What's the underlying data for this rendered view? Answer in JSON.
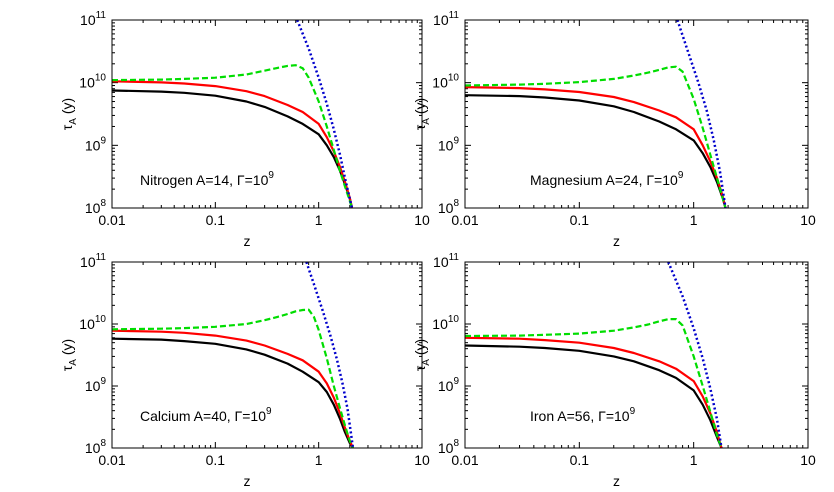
{
  "chart_data": [
    {
      "type": "line",
      "annotation": "Nitrogen A=14, Γ=10",
      "annotation_sup": "9",
      "xlabel": "z",
      "ylabel": "τ",
      "ylabel_sub": "A",
      "ylabel_unit": " (y)",
      "xscale": "log",
      "yscale": "log",
      "xlim": [
        0.01,
        10
      ],
      "ylim": [
        100000000.0,
        100000000000.0
      ],
      "xticks": [
        "0.01",
        "0.1",
        "1",
        "10"
      ],
      "yticks": [
        {
          "base": "10",
          "exp": "8"
        },
        {
          "base": "10",
          "exp": "9"
        },
        {
          "base": "10",
          "exp": "10"
        },
        {
          "base": "10",
          "exp": "11"
        }
      ],
      "series": [
        {
          "color": "#000000",
          "style": "solid",
          "x": [
            0.01,
            0.03,
            0.05,
            0.1,
            0.2,
            0.3,
            0.5,
            0.7,
            1.0,
            1.2,
            1.4,
            1.6,
            1.8,
            2.0,
            2.1
          ],
          "y": [
            7500000000.0,
            7200000000.0,
            6900000000.0,
            6200000000.0,
            5000000000.0,
            4100000000.0,
            2900000000.0,
            2200000000.0,
            1500000000.0,
            1000000000.0,
            650000000.0,
            400000000.0,
            240000000.0,
            140000000.0,
            100000000.0
          ]
        },
        {
          "color": "#ff0000",
          "style": "solid",
          "x": [
            0.01,
            0.03,
            0.05,
            0.1,
            0.2,
            0.3,
            0.5,
            0.7,
            1.0,
            1.2,
            1.4,
            1.6,
            1.8,
            2.0,
            2.1
          ],
          "y": [
            10500000000.0,
            10100000000.0,
            9700000000.0,
            8800000000.0,
            7300000000.0,
            6100000000.0,
            4400000000.0,
            3400000000.0,
            2200000000.0,
            1350000000.0,
            800000000.0,
            460000000.0,
            260000000.0,
            145000000.0,
            100000000.0
          ]
        },
        {
          "color": "#00dd00",
          "style": "dashed",
          "x": [
            0.01,
            0.03,
            0.05,
            0.1,
            0.2,
            0.3,
            0.4,
            0.5,
            0.6,
            0.7,
            0.8,
            1.0,
            1.2,
            1.4,
            1.6,
            1.8,
            2.0,
            2.1
          ],
          "y": [
            11000000000.0,
            11200000000.0,
            11500000000.0,
            12000000000.0,
            13500000000.0,
            15500000000.0,
            17200000000.0,
            18500000000.0,
            19000000000.0,
            17000000000.0,
            12000000000.0,
            5000000000.0,
            2000000000.0,
            850000000.0,
            400000000.0,
            220000000.0,
            130000000.0,
            100000000.0
          ]
        },
        {
          "color": "#0000cc",
          "style": "dotted",
          "x": [
            0.62,
            0.8,
            1.0,
            1.2,
            1.4,
            1.6,
            1.8,
            2.0,
            2.1
          ],
          "y": [
            100000000000.0,
            35000000000.0,
            12000000000.0,
            4600000000.0,
            1800000000.0,
            730000000.0,
            300000000.0,
            140000000.0,
            100000000.0
          ]
        }
      ]
    },
    {
      "type": "line",
      "annotation": "Magnesium A=24, Γ=10",
      "annotation_sup": "9",
      "xlabel": "z",
      "ylabel": "τ",
      "ylabel_sub": "A",
      "ylabel_unit": " (y)",
      "xscale": "log",
      "yscale": "log",
      "xlim": [
        0.01,
        10
      ],
      "ylim": [
        100000000.0,
        100000000000.0
      ],
      "xticks": [
        "0.01",
        "0.1",
        "1",
        "10"
      ],
      "yticks": [
        {
          "base": "10",
          "exp": "8"
        },
        {
          "base": "10",
          "exp": "9"
        },
        {
          "base": "10",
          "exp": "10"
        },
        {
          "base": "10",
          "exp": "11"
        }
      ],
      "series": [
        {
          "color": "#000000",
          "style": "solid",
          "x": [
            0.01,
            0.03,
            0.05,
            0.1,
            0.2,
            0.3,
            0.5,
            0.7,
            1.0,
            1.2,
            1.4,
            1.6,
            1.8,
            1.9
          ],
          "y": [
            6300000000.0,
            6100000000.0,
            5800000000.0,
            5200000000.0,
            4200000000.0,
            3400000000.0,
            2400000000.0,
            1800000000.0,
            1200000000.0,
            750000000.0,
            450000000.0,
            260000000.0,
            140000000.0,
            100000000.0
          ]
        },
        {
          "color": "#ff0000",
          "style": "solid",
          "x": [
            0.01,
            0.03,
            0.05,
            0.1,
            0.2,
            0.3,
            0.5,
            0.7,
            1.0,
            1.2,
            1.4,
            1.6,
            1.8,
            1.9
          ],
          "y": [
            8500000000.0,
            8200000000.0,
            7800000000.0,
            7100000000.0,
            5900000000.0,
            4900000000.0,
            3600000000.0,
            2800000000.0,
            1800000000.0,
            1000000000.0,
            550000000.0,
            300000000.0,
            150000000.0,
            100000000.0
          ]
        },
        {
          "color": "#00dd00",
          "style": "dashed",
          "x": [
            0.01,
            0.03,
            0.05,
            0.1,
            0.2,
            0.3,
            0.4,
            0.5,
            0.6,
            0.7,
            0.8,
            1.0,
            1.2,
            1.4,
            1.6,
            1.8,
            1.9
          ],
          "y": [
            9000000000.0,
            9300000000.0,
            9600000000.0,
            10200000000.0,
            11500000000.0,
            13000000000.0,
            14500000000.0,
            16000000000.0,
            17500000000.0,
            18000000000.0,
            15000000000.0,
            5500000000.0,
            1900000000.0,
            700000000.0,
            300000000.0,
            140000000.0,
            100000000.0
          ]
        },
        {
          "color": "#0000cc",
          "style": "dotted",
          "x": [
            0.72,
            0.9,
            1.1,
            1.3,
            1.5,
            1.7,
            1.9
          ],
          "y": [
            100000000000.0,
            30000000000.0,
            10000000000.0,
            3600000000.0,
            1200000000.0,
            380000000.0,
            100000000.0
          ]
        }
      ]
    },
    {
      "type": "line",
      "annotation": "Calcium A=40, Γ=10",
      "annotation_sup": "9",
      "xlabel": "z",
      "ylabel": "τ",
      "ylabel_sub": "A",
      "ylabel_unit": " (y)",
      "xscale": "log",
      "yscale": "log",
      "xlim": [
        0.01,
        10
      ],
      "ylim": [
        100000000.0,
        100000000000.0
      ],
      "xticks": [
        "0.01",
        "0.1",
        "1",
        "10"
      ],
      "yticks": [
        {
          "base": "10",
          "exp": "8"
        },
        {
          "base": "10",
          "exp": "9"
        },
        {
          "base": "10",
          "exp": "10"
        },
        {
          "base": "10",
          "exp": "11"
        }
      ],
      "series": [
        {
          "color": "#000000",
          "style": "solid",
          "x": [
            0.01,
            0.03,
            0.05,
            0.1,
            0.2,
            0.3,
            0.5,
            0.7,
            1.0,
            1.2,
            1.4,
            1.6,
            1.8,
            2.0,
            2.15
          ],
          "y": [
            5800000000.0,
            5600000000.0,
            5300000000.0,
            4800000000.0,
            3900000000.0,
            3200000000.0,
            2300000000.0,
            1700000000.0,
            1150000000.0,
            800000000.0,
            500000000.0,
            300000000.0,
            180000000.0,
            120000000.0,
            100000000.0
          ]
        },
        {
          "color": "#ff0000",
          "style": "solid",
          "x": [
            0.01,
            0.03,
            0.05,
            0.1,
            0.2,
            0.3,
            0.5,
            0.7,
            1.0,
            1.2,
            1.4,
            1.6,
            1.8,
            2.0,
            2.15
          ],
          "y": [
            7800000000.0,
            7500000000.0,
            7200000000.0,
            6500000000.0,
            5400000000.0,
            4500000000.0,
            3300000000.0,
            2600000000.0,
            1700000000.0,
            1100000000.0,
            650000000.0,
            370000000.0,
            210000000.0,
            130000000.0,
            100000000.0
          ]
        },
        {
          "color": "#00dd00",
          "style": "dashed",
          "x": [
            0.01,
            0.03,
            0.05,
            0.1,
            0.2,
            0.3,
            0.4,
            0.5,
            0.6,
            0.7,
            0.8,
            0.9,
            1.0,
            1.2,
            1.4,
            1.6,
            1.8,
            2.0,
            2.15
          ],
          "y": [
            8200000000.0,
            8400000000.0,
            8600000000.0,
            9000000000.0,
            10000000000.0,
            11500000000.0,
            13000000000.0,
            14500000000.0,
            16000000000.0,
            16800000000.0,
            17000000000.0,
            13000000000.0,
            8000000000.0,
            2800000000.0,
            1000000000.0,
            450000000.0,
            230000000.0,
            130000000.0,
            100000000.0
          ]
        },
        {
          "color": "#0000cc",
          "style": "dotted",
          "x": [
            0.76,
            0.9,
            1.1,
            1.3,
            1.5,
            1.7,
            1.9,
            2.15
          ],
          "y": [
            100000000000.0,
            44000000000.0,
            16000000000.0,
            6500000000.0,
            2700000000.0,
            1100000000.0,
            430000000.0,
            100000000.0
          ]
        }
      ]
    },
    {
      "type": "line",
      "annotation": "Iron A=56, Γ=10",
      "annotation_sup": "9",
      "xlabel": "z",
      "ylabel": "τ",
      "ylabel_sub": "A",
      "ylabel_unit": " (y)",
      "xscale": "log",
      "yscale": "log",
      "xlim": [
        0.01,
        10
      ],
      "ylim": [
        100000000.0,
        100000000000.0
      ],
      "xticks": [
        "0.01",
        "0.1",
        "1",
        "10"
      ],
      "yticks": [
        {
          "base": "10",
          "exp": "8"
        },
        {
          "base": "10",
          "exp": "9"
        },
        {
          "base": "10",
          "exp": "10"
        },
        {
          "base": "10",
          "exp": "11"
        }
      ],
      "series": [
        {
          "color": "#000000",
          "style": "solid",
          "x": [
            0.01,
            0.03,
            0.05,
            0.1,
            0.2,
            0.3,
            0.5,
            0.7,
            1.0,
            1.2,
            1.4,
            1.6,
            1.75
          ],
          "y": [
            4500000000.0,
            4300000000.0,
            4100000000.0,
            3700000000.0,
            3000000000.0,
            2500000000.0,
            1800000000.0,
            1350000000.0,
            850000000.0,
            500000000.0,
            280000000.0,
            150000000.0,
            100000000.0
          ]
        },
        {
          "color": "#ff0000",
          "style": "solid",
          "x": [
            0.01,
            0.03,
            0.05,
            0.1,
            0.2,
            0.3,
            0.5,
            0.7,
            1.0,
            1.2,
            1.4,
            1.6,
            1.75
          ],
          "y": [
            6000000000.0,
            5800000000.0,
            5500000000.0,
            5000000000.0,
            4100000000.0,
            3400000000.0,
            2500000000.0,
            1900000000.0,
            1200000000.0,
            680000000.0,
            360000000.0,
            180000000.0,
            100000000.0
          ]
        },
        {
          "color": "#00dd00",
          "style": "dashed",
          "x": [
            0.01,
            0.03,
            0.05,
            0.1,
            0.2,
            0.3,
            0.4,
            0.5,
            0.6,
            0.7,
            0.8,
            1.0,
            1.2,
            1.4,
            1.6,
            1.75
          ],
          "y": [
            6400000000.0,
            6500000000.0,
            6700000000.0,
            7000000000.0,
            7800000000.0,
            8800000000.0,
            9800000000.0,
            11000000000.0,
            12000000000.0,
            12000000000.0,
            9500000000.0,
            3000000000.0,
            1000000000.0,
            380000000.0,
            160000000.0,
            100000000.0
          ]
        },
        {
          "color": "#0000cc",
          "style": "dotted",
          "x": [
            0.6,
            0.8,
            1.0,
            1.2,
            1.4,
            1.6,
            1.75
          ],
          "y": [
            100000000000.0,
            28000000000.0,
            8500000000.0,
            2800000000.0,
            900000000.0,
            290000000.0,
            100000000.0
          ]
        }
      ]
    }
  ]
}
